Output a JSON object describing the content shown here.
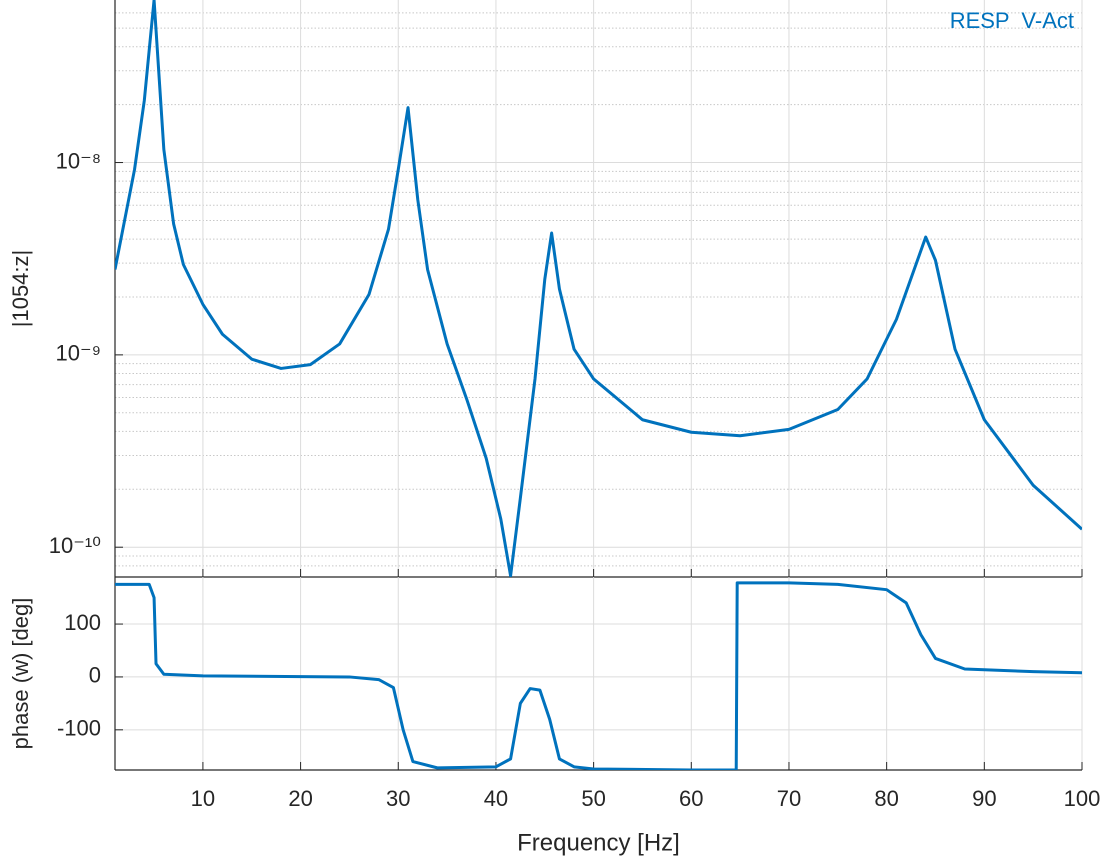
{
  "chart_data": [
    {
      "type": "line",
      "ylabel": "|1054:z|",
      "log_y": true,
      "grid": true,
      "minor_grid": true,
      "legend": "upper right",
      "xlim": [
        1,
        100
      ],
      "xticks": [
        10,
        20,
        30,
        40,
        50,
        60,
        70,
        80,
        90,
        100
      ],
      "ylim": [
        7e-11,
        7e-08
      ],
      "yticks": [
        {
          "value": 1e-10,
          "label": "10⁻¹⁰"
        },
        {
          "value": 1e-09,
          "label": "10⁻⁹"
        },
        {
          "value": 1e-08,
          "label": "10⁻⁸"
        }
      ],
      "x": [
        1,
        3,
        4,
        5,
        6,
        7,
        8,
        10,
        12,
        15,
        18,
        21,
        24,
        27,
        29,
        30,
        31,
        32,
        33,
        35,
        37,
        39,
        40.5,
        41.5,
        42.5,
        44,
        45,
        45.7,
        46.5,
        48,
        50,
        55,
        60,
        65,
        70,
        75,
        78,
        81,
        83,
        84,
        85,
        87,
        90,
        95,
        100
      ],
      "series": [
        {
          "name": "RESP  V-Act",
          "color": "#0072bd",
          "values": [
            2.78e-09,
            9.2e-09,
            2.1e-08,
            7e-08,
            1.17e-08,
            4.8e-09,
            2.95e-09,
            1.83e-09,
            1.28e-09,
            9.5e-10,
            8.5e-10,
            8.9e-10,
            1.14e-09,
            2.06e-09,
            4.5e-09,
            9.2e-09,
            1.93e-08,
            6.4e-09,
            2.78e-09,
            1.14e-09,
            5.9e-10,
            2.9e-10,
            1.4e-10,
            7.1e-11,
            1.8e-10,
            7.5e-10,
            2.47e-09,
            4.3e-09,
            2.2e-09,
            1.07e-09,
            7.5e-10,
            4.6e-10,
            3.96e-10,
            3.8e-10,
            4.1e-10,
            5.2e-10,
            7.5e-10,
            1.53e-09,
            2.95e-09,
            4.1e-09,
            3.1e-09,
            1.07e-09,
            4.6e-10,
            2.1e-10,
            1.24e-10
          ]
        }
      ]
    },
    {
      "type": "line",
      "ylabel": "phase (w) [deg]",
      "xlabel": "Frequency [Hz]",
      "grid": true,
      "xlim": [
        1,
        100
      ],
      "xticks": [
        10,
        20,
        30,
        40,
        50,
        60,
        70,
        80,
        90,
        100
      ],
      "ylim": [
        -176,
        189
      ],
      "yticks": [
        -100,
        0,
        100
      ],
      "x": [
        1,
        4.5,
        5,
        5.2,
        6,
        10,
        25,
        28,
        29.5,
        30.5,
        31.5,
        34,
        40,
        41.5,
        42.5,
        43.5,
        44.5,
        45.5,
        46.5,
        48,
        50,
        60,
        64.6,
        64.7,
        70,
        75,
        80,
        82,
        83.5,
        85,
        88,
        95,
        100
      ],
      "series": [
        {
          "color": "#0072bd",
          "values": [
            175,
            175,
            150,
            25,
            5,
            2,
            0,
            -5,
            -20,
            -100,
            -160,
            -172,
            -170,
            -155,
            -50,
            -22,
            -25,
            -80,
            -155,
            -170,
            -174,
            -176,
            -176,
            178,
            178,
            175,
            165,
            140,
            80,
            35,
            15,
            10,
            8
          ]
        }
      ]
    }
  ]
}
